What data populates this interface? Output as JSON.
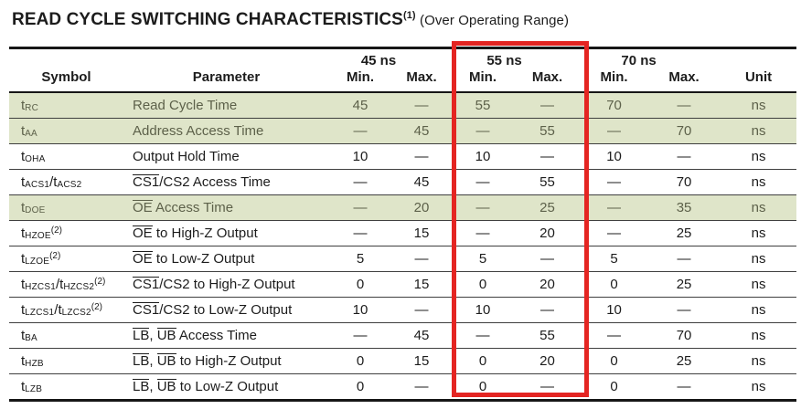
{
  "title": {
    "main": "READ CYCLE SWITCHING CHARACTERISTICS",
    "footnote": "(1)",
    "suffix": "(Over Operating Range)"
  },
  "table": {
    "speed_groups": [
      "45 ns",
      "55 ns",
      "70 ns"
    ],
    "col_headers": {
      "symbol": "Symbol",
      "parameter": "Parameter",
      "min": "Min.",
      "max": "Max.",
      "unit": "Unit"
    },
    "rows": [
      {
        "symbol": [
          [
            "text",
            "t"
          ],
          [
            "sub",
            "RC"
          ]
        ],
        "parameter": [
          [
            "text",
            "Read Cycle Time"
          ]
        ],
        "values": [
          "45",
          "—",
          "55",
          "—",
          "70",
          "—"
        ],
        "unit": "ns",
        "highlight": true
      },
      {
        "symbol": [
          [
            "text",
            "t"
          ],
          [
            "sub",
            "AA"
          ]
        ],
        "parameter": [
          [
            "text",
            "Address Access Time"
          ]
        ],
        "values": [
          "—",
          "45",
          "—",
          "55",
          "—",
          "70"
        ],
        "unit": "ns",
        "highlight": true
      },
      {
        "symbol": [
          [
            "text",
            "t"
          ],
          [
            "sub",
            "OHA"
          ]
        ],
        "parameter": [
          [
            "text",
            "Output Hold Time"
          ]
        ],
        "values": [
          "10",
          "—",
          "10",
          "—",
          "10",
          "—"
        ],
        "unit": "ns",
        "highlight": false
      },
      {
        "symbol": [
          [
            "text",
            "t"
          ],
          [
            "sub",
            "ACS1"
          ],
          [
            "text",
            "/t"
          ],
          [
            "sub",
            "ACS2"
          ]
        ],
        "parameter": [
          [
            "over",
            "CS1"
          ],
          [
            "text",
            "/CS2 Access Time"
          ]
        ],
        "values": [
          "—",
          "45",
          "—",
          "55",
          "—",
          "70"
        ],
        "unit": "ns",
        "highlight": false
      },
      {
        "symbol": [
          [
            "text",
            "t"
          ],
          [
            "sub",
            "DOE"
          ]
        ],
        "parameter": [
          [
            "over",
            "OE"
          ],
          [
            "text",
            " Access Time"
          ]
        ],
        "values": [
          "—",
          "20",
          "—",
          "25",
          "—",
          "35"
        ],
        "unit": "ns",
        "highlight": true
      },
      {
        "symbol": [
          [
            "text",
            "t"
          ],
          [
            "sub",
            "HZOE"
          ],
          [
            "sup",
            "(2)"
          ]
        ],
        "parameter": [
          [
            "over",
            "OE"
          ],
          [
            "text",
            " to High-Z Output"
          ]
        ],
        "values": [
          "—",
          "15",
          "—",
          "20",
          "—",
          "25"
        ],
        "unit": "ns",
        "highlight": false
      },
      {
        "symbol": [
          [
            "text",
            "t"
          ],
          [
            "sub",
            "LZOE"
          ],
          [
            "sup",
            "(2)"
          ]
        ],
        "parameter": [
          [
            "over",
            "OE"
          ],
          [
            "text",
            " to Low-Z Output"
          ]
        ],
        "values": [
          "5",
          "—",
          "5",
          "—",
          "5",
          "—"
        ],
        "unit": "ns",
        "highlight": false
      },
      {
        "symbol": [
          [
            "text",
            "t"
          ],
          [
            "sub",
            "HZCS1"
          ],
          [
            "text",
            "/t"
          ],
          [
            "sub",
            "HZCS2"
          ],
          [
            "sup",
            "(2)"
          ]
        ],
        "parameter": [
          [
            "over",
            "CS1"
          ],
          [
            "text",
            "/CS2 to High-Z Output"
          ]
        ],
        "values": [
          "0",
          "15",
          "0",
          "20",
          "0",
          "25"
        ],
        "unit": "ns",
        "highlight": false
      },
      {
        "symbol": [
          [
            "text",
            "t"
          ],
          [
            "sub",
            "LZCS1"
          ],
          [
            "text",
            "/t"
          ],
          [
            "sub",
            "LZCS2"
          ],
          [
            "sup",
            "(2)"
          ]
        ],
        "parameter": [
          [
            "over",
            "CS1"
          ],
          [
            "text",
            "/CS2 to Low-Z Output"
          ]
        ],
        "values": [
          "10",
          "—",
          "10",
          "—",
          "10",
          "—"
        ],
        "unit": "ns",
        "highlight": false
      },
      {
        "symbol": [
          [
            "text",
            "t"
          ],
          [
            "sub",
            "BA"
          ]
        ],
        "parameter": [
          [
            "over",
            "LB"
          ],
          [
            "text",
            ", "
          ],
          [
            "over",
            "UB"
          ],
          [
            "text",
            " Access Time"
          ]
        ],
        "values": [
          "—",
          "45",
          "—",
          "55",
          "—",
          "70"
        ],
        "unit": "ns",
        "highlight": false
      },
      {
        "symbol": [
          [
            "text",
            "t"
          ],
          [
            "sub",
            "HZB"
          ]
        ],
        "parameter": [
          [
            "over",
            "LB"
          ],
          [
            "text",
            ", "
          ],
          [
            "over",
            "UB"
          ],
          [
            "text",
            " to High-Z Output"
          ]
        ],
        "values": [
          "0",
          "15",
          "0",
          "20",
          "0",
          "25"
        ],
        "unit": "ns",
        "highlight": false
      },
      {
        "symbol": [
          [
            "text",
            "t"
          ],
          [
            "sub",
            "LZB"
          ]
        ],
        "parameter": [
          [
            "over",
            "LB"
          ],
          [
            "text",
            ", "
          ],
          [
            "over",
            "UB"
          ],
          [
            "text",
            " to Low-Z Output"
          ]
        ],
        "values": [
          "0",
          "—",
          "0",
          "—",
          "0",
          "—"
        ],
        "unit": "ns",
        "highlight": false
      }
    ]
  },
  "annotation": {
    "highlighted_column": "55 ns"
  },
  "colors": {
    "text_dark": "#1c1c1c",
    "line_dark": "#161616",
    "row_highlight_bg": "#dfe5c9",
    "row_highlight_text": "#5d614a",
    "annotation_red": "#e42522"
  }
}
